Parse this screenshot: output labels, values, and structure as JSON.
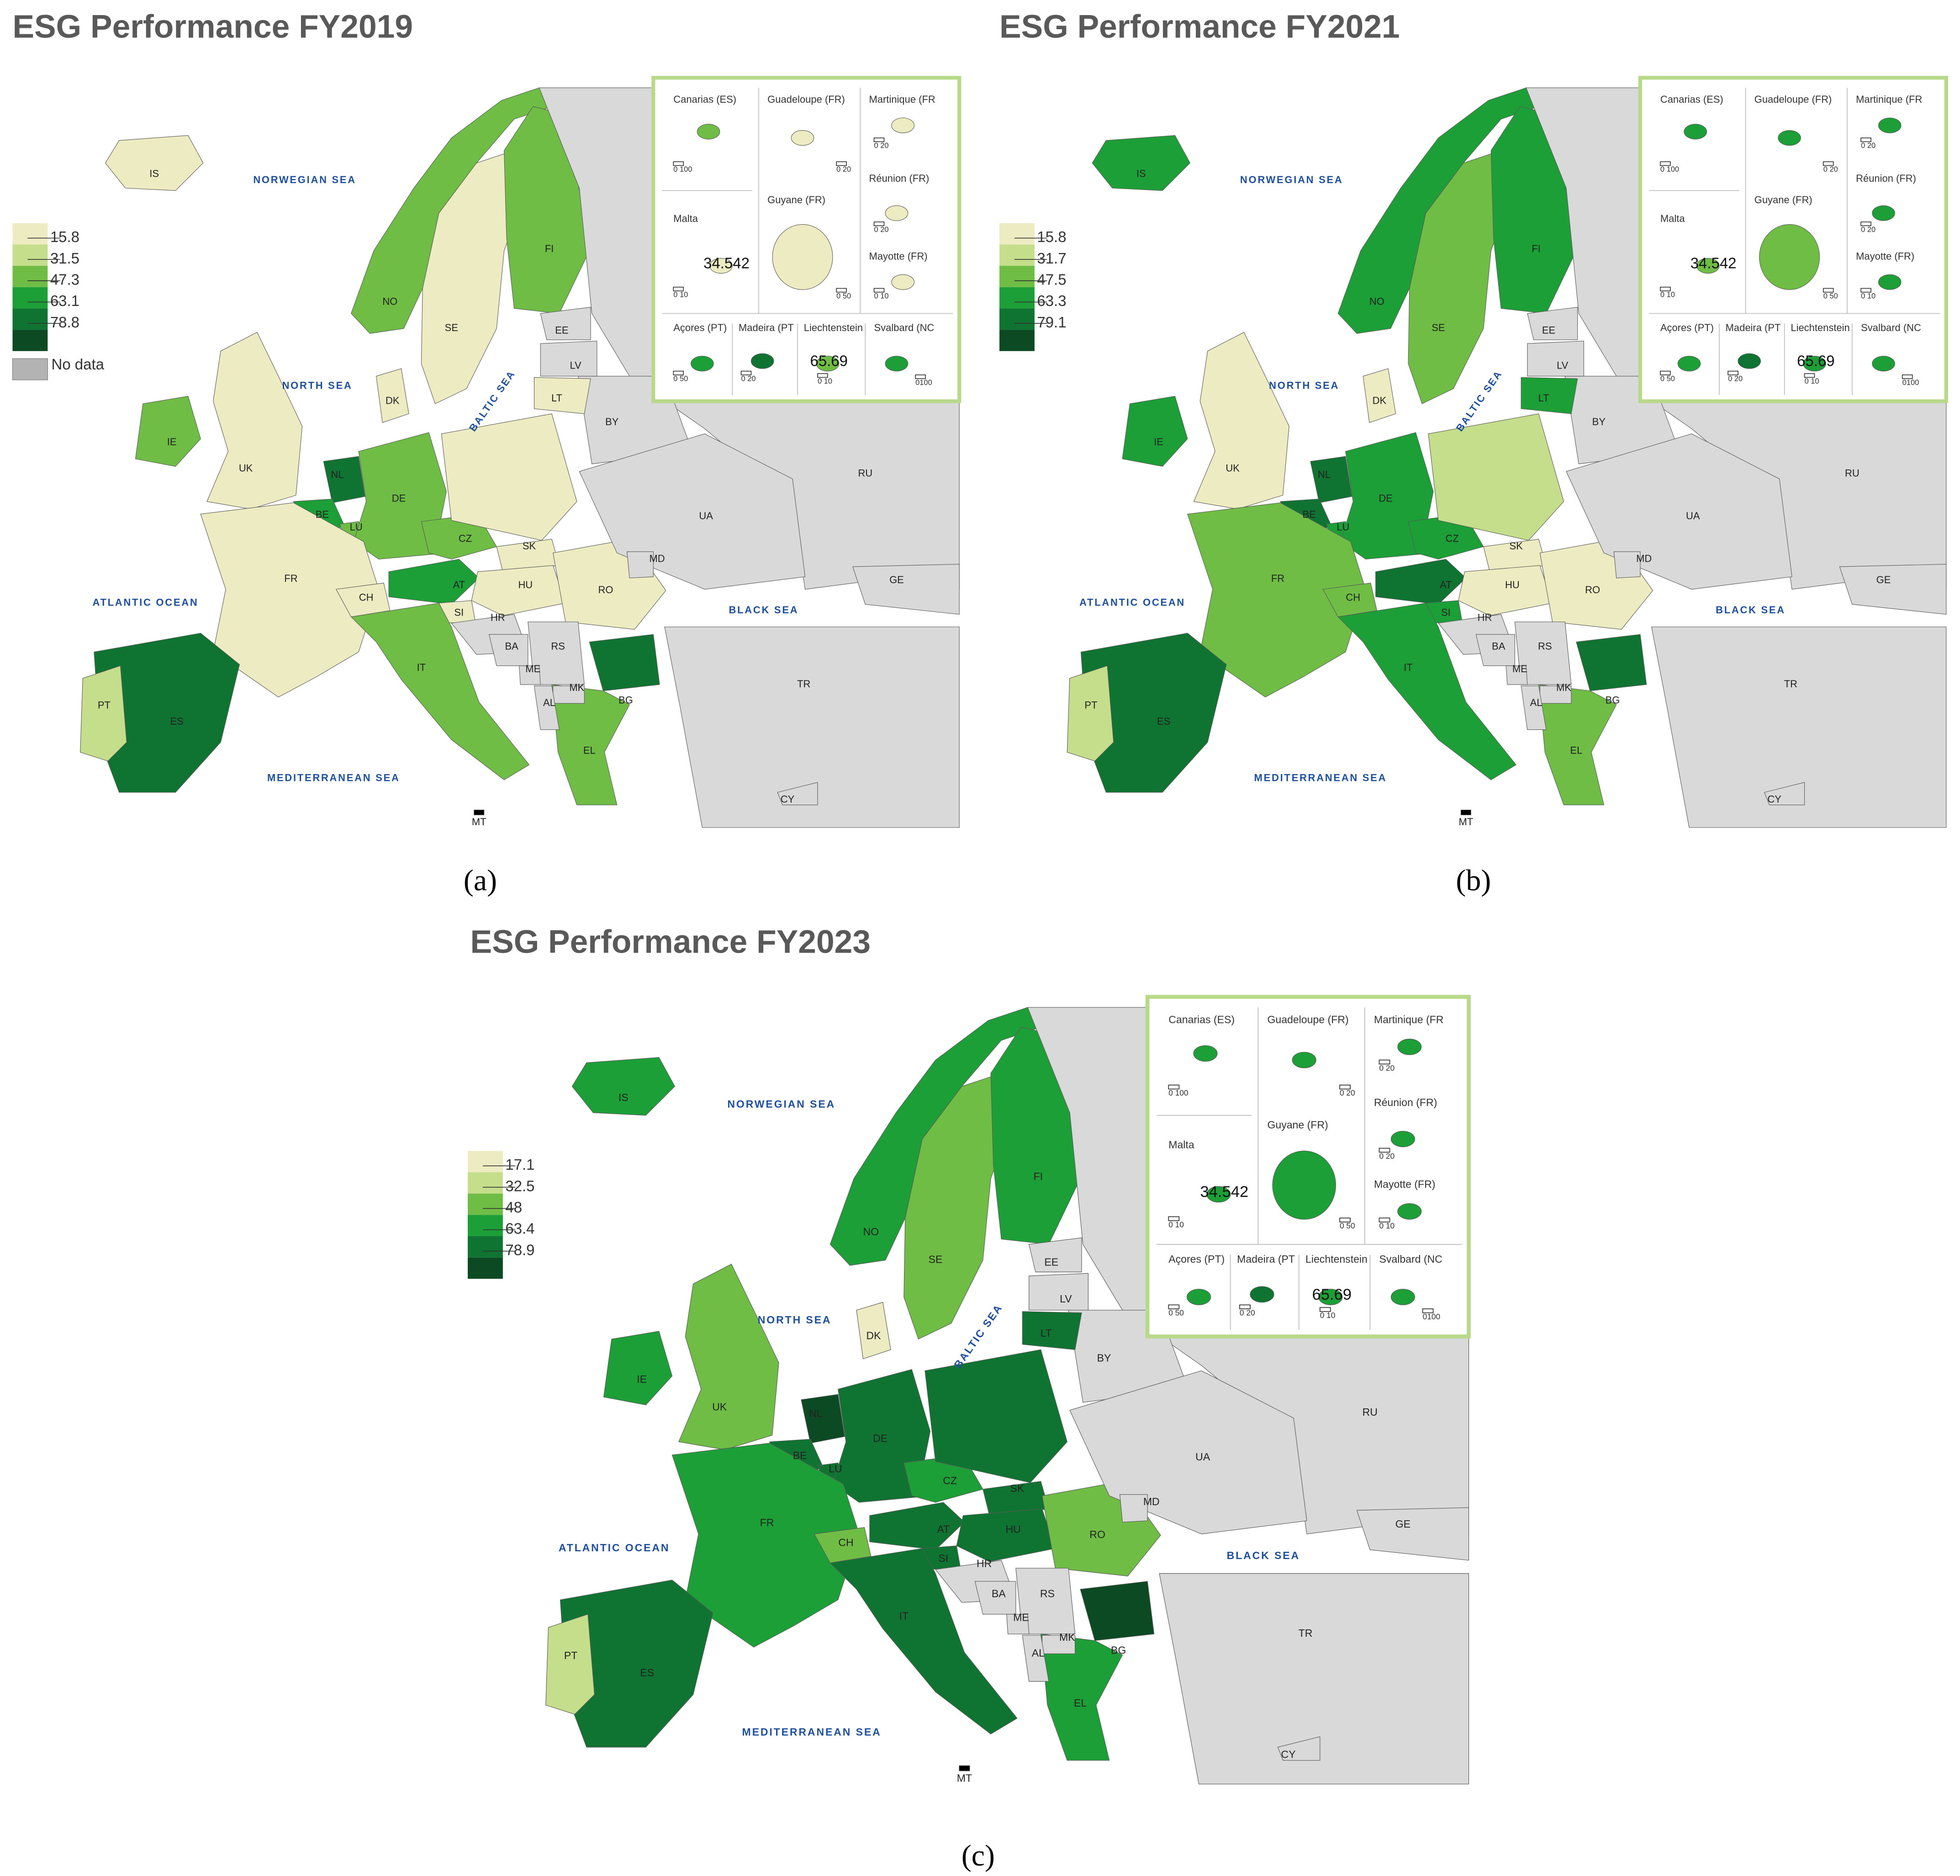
{
  "countries": [
    "IS",
    "NO",
    "SE",
    "FI",
    "DK",
    "UK",
    "IE",
    "NL",
    "BE",
    "LU",
    "DE",
    "FR",
    "CH",
    "AT",
    "CZ",
    "SK",
    "HU",
    "SI",
    "IT",
    "RO",
    "BG",
    "EL",
    "ES",
    "PT",
    "RU",
    "BY",
    "UA",
    "MD",
    "GE",
    "TR",
    "CY",
    "HR",
    "BA",
    "RS",
    "ME",
    "MK",
    "AL",
    "EE",
    "LV",
    "LT",
    "MT"
  ],
  "seas": [
    "NORWEGIAN SEA",
    "NORTH SEA",
    "BALTIC SEA",
    "ATLANTIC OCEAN",
    "BLACK SEA",
    "MEDITERRANEAN SEA"
  ],
  "inset": [
    {
      "name": "Canarias (ES)",
      "scale": "0 100"
    },
    {
      "name": "Guadeloupe (FR)",
      "scale": "0 20"
    },
    {
      "name": "Martinique (FR",
      "scale": "0 20"
    },
    {
      "name": "Réunion (FR)",
      "scale": "0 20"
    },
    {
      "name": "Guyane (FR)",
      "scale": "0 50"
    },
    {
      "name": "Mayotte (FR)",
      "scale": "0 10"
    },
    {
      "name": "Malta",
      "scale": "0 10",
      "overlay": "34.542"
    },
    {
      "name": "Açores (PT)",
      "scale": "0 50"
    },
    {
      "name": "Madeira (PT",
      "scale": "0 20"
    },
    {
      "name": "Liechtenstein",
      "scale": "0 10",
      "overlay": "65.69"
    },
    {
      "name": "Svalbard (NC",
      "scale": "0100"
    }
  ],
  "maps": [
    {
      "title": "ESG Performance FY2019",
      "caption": "(a)",
      "legend": {
        "colors": [
          "#ecebc2",
          "#c5de8c",
          "#6fbd45",
          "#1d9f38",
          "#0f7331",
          "#0b4a22"
        ],
        "ticks": [
          15.8,
          31.5,
          47.3,
          63.1,
          78.8
        ],
        "no_data": {
          "label": "No data",
          "color": "#b3b3b3"
        }
      },
      "fills": [
        "#ecebc2",
        "#6fbd45",
        "#ecebc2",
        "#6fbd45",
        "#ecebc2",
        "#ecebc2",
        "#6fbd45",
        "#0f7331",
        "#1d9f38",
        "#6fbd45",
        "#6fbd45",
        "#ecebc2",
        "#ecebc2",
        "#1d9f38",
        "#6fbd45",
        "#ecebc2",
        "#ecebc2",
        "#ecebc2",
        "#ecebc2",
        "#6fbd45",
        "#ecebc2",
        "#0f7331",
        "#6fbd45",
        "#0f7331",
        "#c5de8c",
        "#d9d9d9",
        "#d9d9d9",
        "#d9d9d9",
        "#d9d9d9",
        "#d9d9d9",
        "#d9d9d9",
        "#d9d9d9",
        "#d9d9d9",
        "#d9d9d9",
        "#d9d9d9",
        "#d9d9d9",
        "#d9d9d9",
        "#d9d9d9",
        "#d9d9d9",
        "#d9d9d9",
        "#ecebc2"
      ],
      "inset_fills": [
        "#6fbd45",
        "#ecebc2",
        "#ecebc2",
        "#ecebc2",
        "#ecebc2",
        "#ecebc2",
        "#ecebc2",
        "#1d9f38",
        "#0f7331",
        "#6fbd45",
        "#1d9f38"
      ]
    },
    {
      "title": "ESG Performance FY2021",
      "caption": "(b)",
      "legend": {
        "colors": [
          "#ecebc2",
          "#c5de8c",
          "#6fbd45",
          "#1d9f38",
          "#0f7331",
          "#0b4a22"
        ],
        "ticks": [
          15.8,
          31.7,
          47.5,
          63.3,
          79.1
        ]
      },
      "fills": [
        "#1d9f38",
        "#1d9f38",
        "#6fbd45",
        "#1d9f38",
        "#ecebc2",
        "#ecebc2",
        "#1d9f38",
        "#0f7331",
        "#0f7331",
        "#1d9f38",
        "#1d9f38",
        "#6fbd45",
        "#6fbd45",
        "#0f7331",
        "#1d9f38",
        "#c5de8c",
        "#ecebc2",
        "#ecebc2",
        "#1d9f38",
        "#1d9f38",
        "#ecebc2",
        "#0f7331",
        "#6fbd45",
        "#0f7331",
        "#c5de8c",
        "#d9d9d9",
        "#d9d9d9",
        "#d9d9d9",
        "#d9d9d9",
        "#d9d9d9",
        "#d9d9d9",
        "#d9d9d9",
        "#d9d9d9",
        "#d9d9d9",
        "#d9d9d9",
        "#d9d9d9",
        "#d9d9d9",
        "#d9d9d9",
        "#d9d9d9",
        "#d9d9d9",
        "#1d9f38"
      ],
      "inset_fills": [
        "#1d9f38",
        "#1d9f38",
        "#1d9f38",
        "#1d9f38",
        "#6fbd45",
        "#1d9f38",
        "#6fbd45",
        "#1d9f38",
        "#0f7331",
        "#1d9f38",
        "#1d9f38"
      ]
    },
    {
      "title": "ESG Performance FY2023",
      "caption": "(c)",
      "legend": {
        "colors": [
          "#ecebc2",
          "#c5de8c",
          "#6fbd45",
          "#1d9f38",
          "#0f7331",
          "#0b4a22"
        ],
        "ticks": [
          17.1,
          32.5,
          48,
          63.4,
          78.9
        ]
      },
      "fills": [
        "#1d9f38",
        "#1d9f38",
        "#6fbd45",
        "#1d9f38",
        "#ecebc2",
        "#6fbd45",
        "#1d9f38",
        "#0b4a22",
        "#0f7331",
        "#0f7331",
        "#0f7331",
        "#1d9f38",
        "#6fbd45",
        "#0f7331",
        "#1d9f38",
        "#0f7331",
        "#0f7331",
        "#0f7331",
        "#0f7331",
        "#0f7331",
        "#6fbd45",
        "#0b4a22",
        "#1d9f38",
        "#0f7331",
        "#c5de8c",
        "#d9d9d9",
        "#d9d9d9",
        "#d9d9d9",
        "#d9d9d9",
        "#d9d9d9",
        "#d9d9d9",
        "#d9d9d9",
        "#d9d9d9",
        "#d9d9d9",
        "#d9d9d9",
        "#d9d9d9",
        "#d9d9d9",
        "#d9d9d9",
        "#d9d9d9",
        "#d9d9d9",
        "#0f7331"
      ],
      "inset_fills": [
        "#1d9f38",
        "#1d9f38",
        "#1d9f38",
        "#1d9f38",
        "#1d9f38",
        "#1d9f38",
        "#1d9f38",
        "#1d9f38",
        "#0f7331",
        "#1d9f38",
        "#1d9f38"
      ]
    }
  ]
}
